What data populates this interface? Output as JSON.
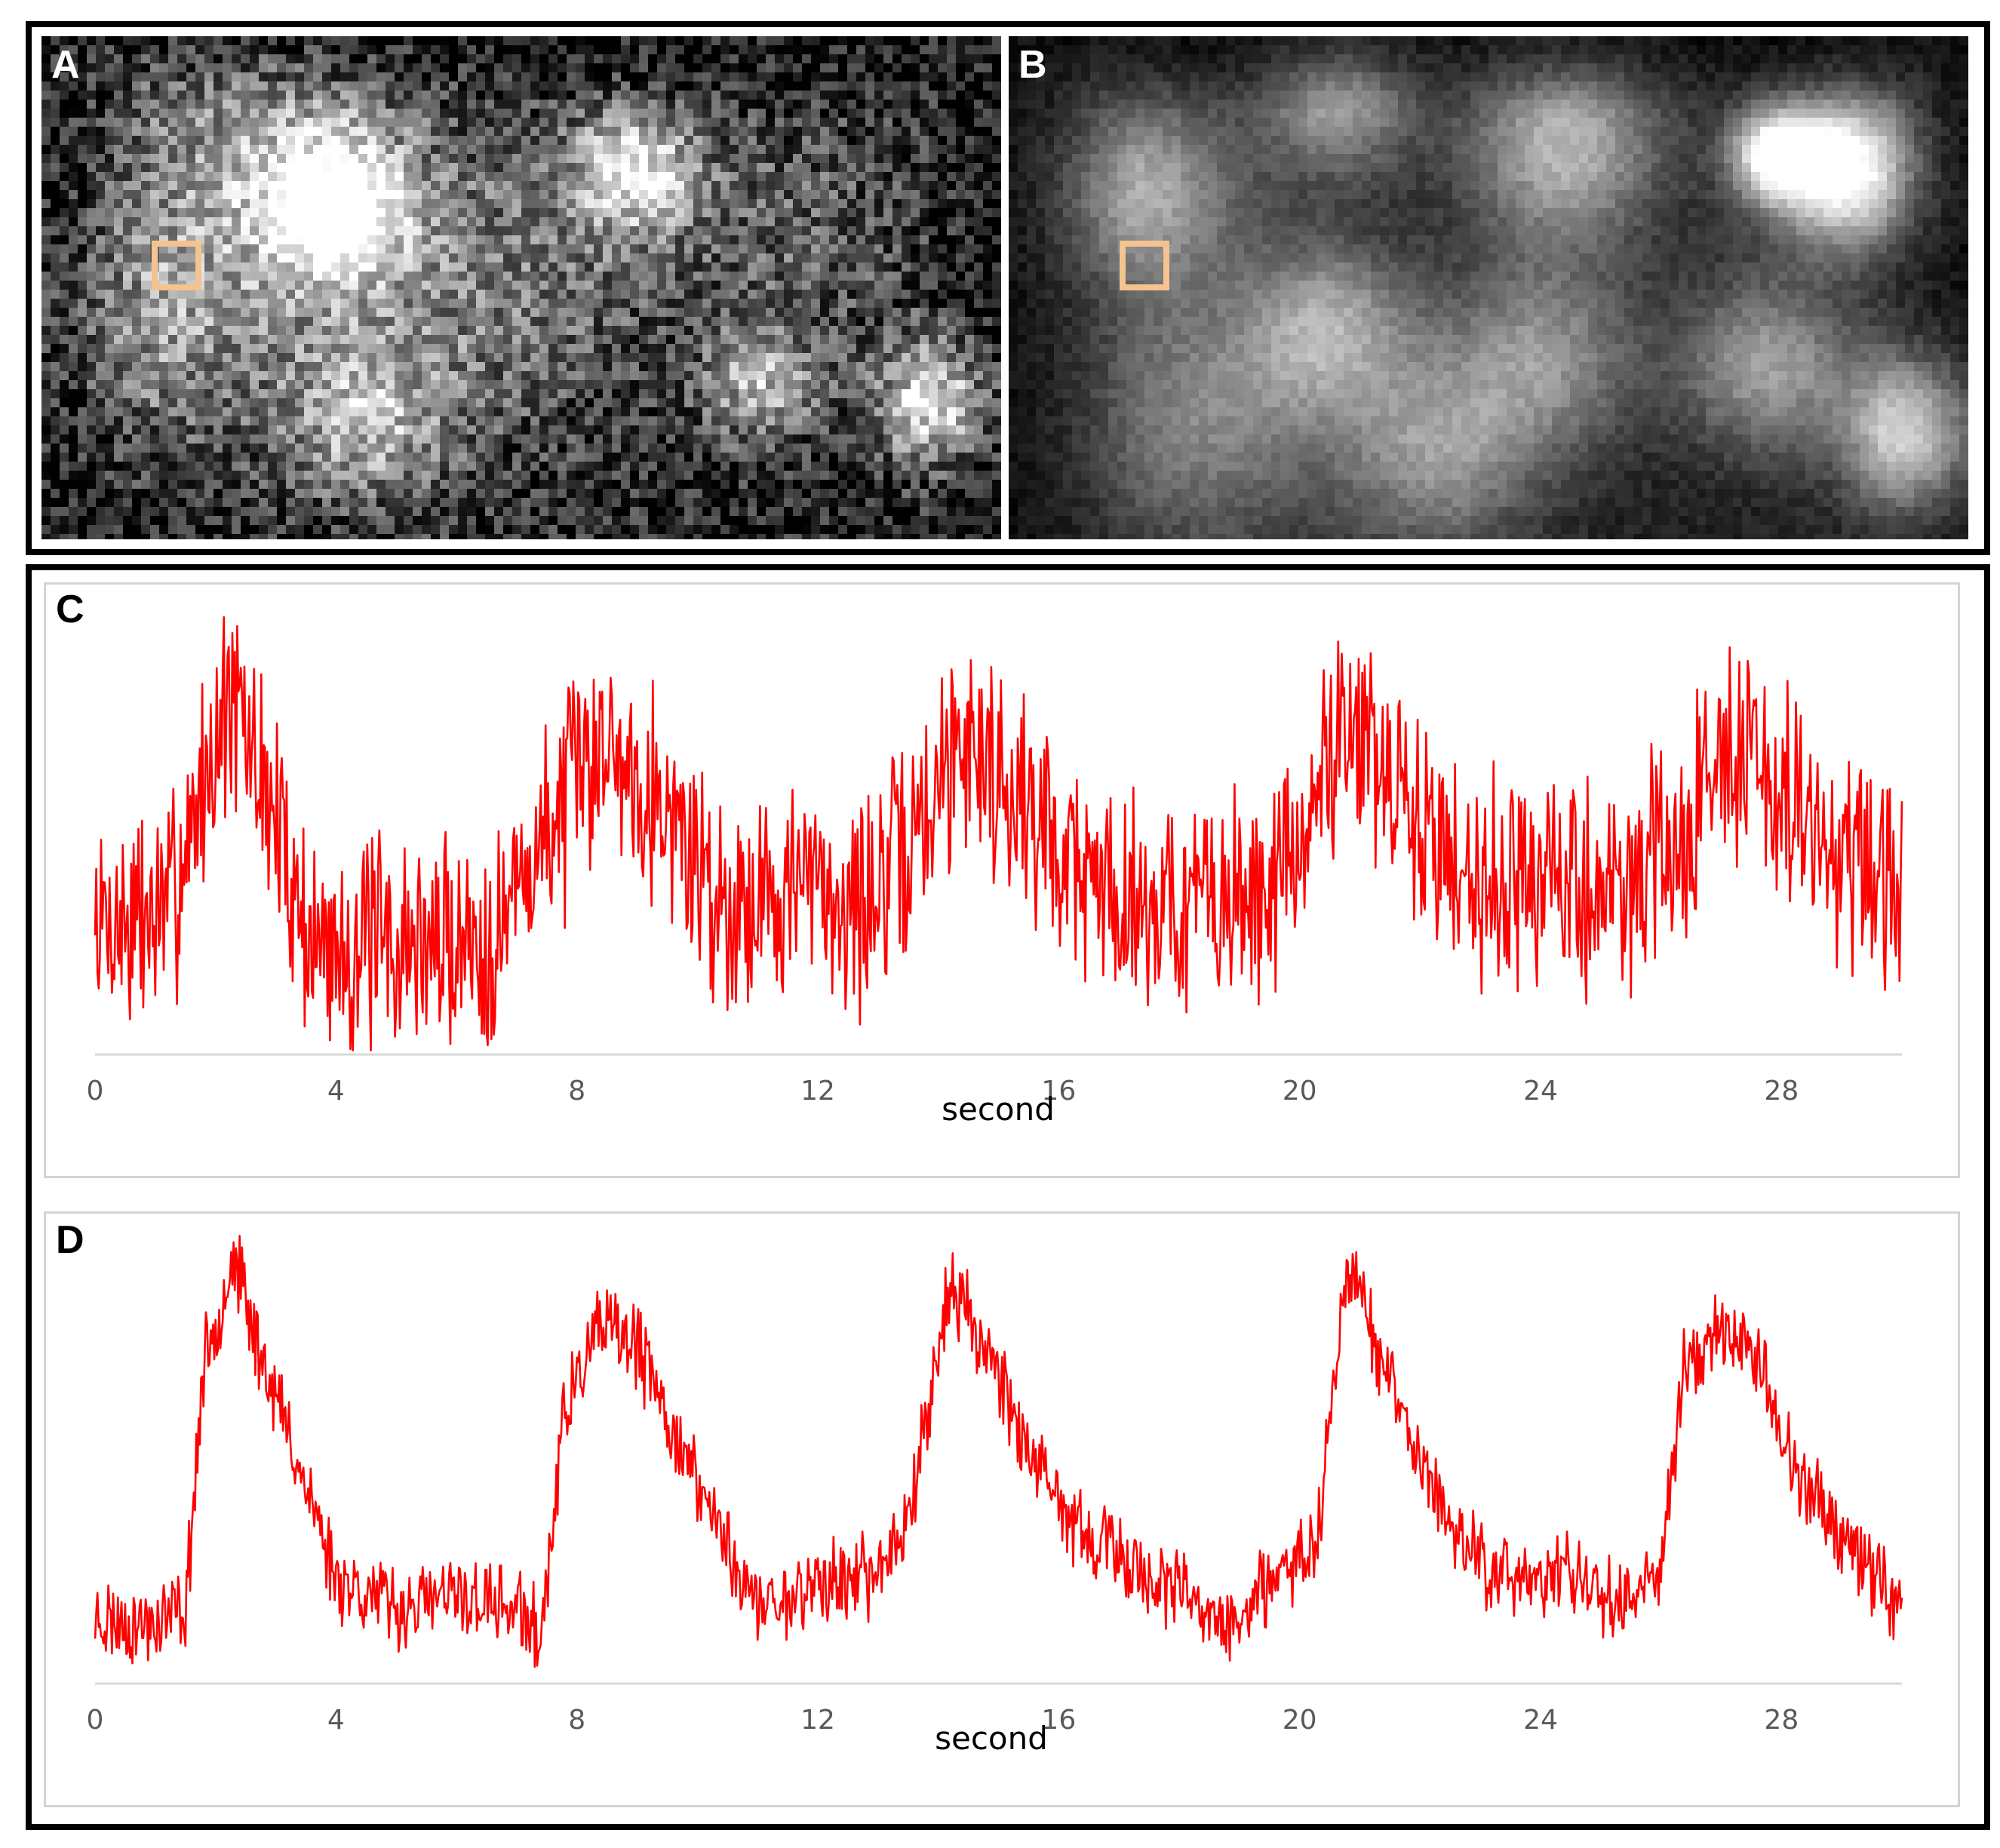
{
  "panels": {
    "a": "A",
    "b": "B",
    "c": "C",
    "d": "D"
  },
  "roi_color": "#f5c38f",
  "trace_color": "#ff0000",
  "chart_data": [
    {
      "panel": "C",
      "type": "line",
      "title": "",
      "xlabel": "second",
      "ylabel": "",
      "xlim": [
        0,
        30
      ],
      "xticks": [
        0,
        4,
        8,
        12,
        16,
        20,
        24,
        28
      ],
      "grid": false,
      "color": "#ff0000",
      "x": [
        0,
        1.2,
        2.2,
        2.8,
        3.6,
        5,
        6.6,
        7.4,
        8.4,
        9.2,
        10.4,
        11.6,
        12.8,
        13.6,
        14.4,
        15.4,
        16.6,
        17.8,
        19,
        20,
        20.7,
        21.6,
        22.8,
        24,
        25.2,
        26.4,
        27,
        28,
        29,
        30
      ],
      "y": [
        0.25,
        0.28,
        0.8,
        0.6,
        0.2,
        0.2,
        0.22,
        0.45,
        0.7,
        0.6,
        0.3,
        0.35,
        0.3,
        0.45,
        0.72,
        0.55,
        0.35,
        0.3,
        0.3,
        0.4,
        0.78,
        0.55,
        0.38,
        0.35,
        0.33,
        0.45,
        0.72,
        0.55,
        0.4,
        0.3
      ]
    },
    {
      "panel": "D",
      "type": "line",
      "title": "",
      "xlabel": "second",
      "ylabel": "",
      "xlim": [
        0,
        30
      ],
      "xticks": [
        0,
        4,
        8,
        12,
        16,
        20,
        24,
        28
      ],
      "grid": false,
      "color": "#ff0000",
      "x": [
        0,
        0.8,
        1.5,
        1.8,
        2.3,
        2.6,
        3.2,
        4,
        5,
        6,
        7,
        7.4,
        7.8,
        8.4,
        9,
        9.6,
        10.4,
        11,
        12,
        13,
        13.5,
        14.2,
        15,
        15.6,
        16.4,
        17.5,
        18.8,
        19.6,
        20.3,
        20.8,
        21.4,
        22.2,
        23.2,
        24.4,
        25.4,
        26,
        26.4,
        27,
        27.6,
        28.4,
        29.2,
        30
      ],
      "y": [
        0.1,
        0.08,
        0.12,
        0.7,
        0.97,
        0.8,
        0.55,
        0.2,
        0.12,
        0.15,
        0.12,
        0.05,
        0.6,
        0.8,
        0.75,
        0.55,
        0.3,
        0.12,
        0.18,
        0.2,
        0.35,
        0.9,
        0.7,
        0.45,
        0.3,
        0.2,
        0.08,
        0.18,
        0.3,
        0.98,
        0.7,
        0.4,
        0.2,
        0.2,
        0.15,
        0.22,
        0.72,
        0.8,
        0.72,
        0.4,
        0.28,
        0.12
      ]
    }
  ]
}
